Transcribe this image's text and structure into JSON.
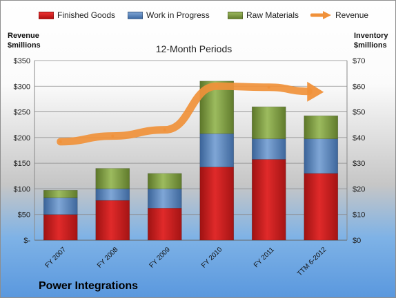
{
  "company": "Power Integrations",
  "chart_data": {
    "type": "bar",
    "title": "12-Month Periods",
    "left_axis_title": [
      "Revenue",
      "$millions"
    ],
    "right_axis_title": [
      "Inventory",
      "$millions"
    ],
    "categories": [
      "FY 2007",
      "FY 2008",
      "FY 2009",
      "FY 2010",
      "FY 2011",
      "TTM 6-2012"
    ],
    "left_ticks": [
      "$-",
      "$50",
      "$100",
      "$150",
      "$200",
      "$250",
      "$300",
      "$350"
    ],
    "right_ticks": [
      "$0",
      "$10",
      "$20",
      "$30",
      "$40",
      "$50",
      "$60",
      "$70"
    ],
    "left_ylim": [
      0,
      350
    ],
    "right_ylim": [
      0,
      70
    ],
    "stacked": true,
    "legend_position": "top",
    "series": [
      {
        "name": "Finished Goods",
        "values": [
          10,
          15.5,
          12.5,
          28.5,
          31.5,
          26
        ],
        "color": "#cc2222"
      },
      {
        "name": "Work in Progress",
        "values": [
          6.5,
          4.5,
          7.5,
          13,
          8,
          13.5
        ],
        "color": "#4f81bd"
      },
      {
        "name": "Raw Materials",
        "values": [
          3,
          8,
          6,
          20.5,
          12.5,
          9
        ],
        "color": "#77933c"
      }
    ],
    "revenue": {
      "name": "Revenue",
      "values": [
        192,
        203,
        215,
        300,
        298,
        290
      ],
      "color": "#f0913a"
    }
  }
}
